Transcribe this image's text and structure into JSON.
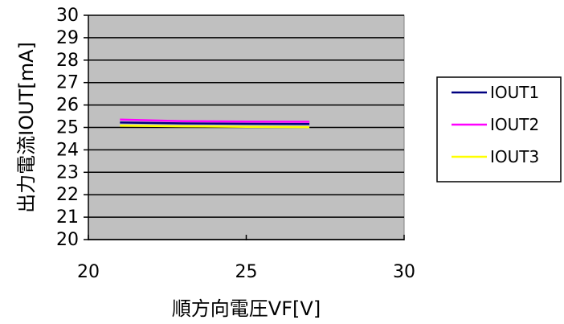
{
  "chart_data": {
    "type": "line",
    "xlabel": "順方向電圧VF[V]",
    "ylabel": "出力電流IOUT[mA]",
    "xlim": [
      20,
      30
    ],
    "ylim": [
      20,
      30
    ],
    "x_ticks": [
      "20",
      "25",
      "30"
    ],
    "y_ticks": [
      "20",
      "21",
      "22",
      "23",
      "24",
      "25",
      "26",
      "27",
      "28",
      "29",
      "30"
    ],
    "grid": "horizontal",
    "plot_background": "#c0c0c0",
    "legend_position": "right",
    "series": [
      {
        "name": "IOUT1",
        "color": "#000080",
        "x": [
          21,
          23,
          25,
          27
        ],
        "y": [
          25.22,
          25.18,
          25.16,
          25.15
        ]
      },
      {
        "name": "IOUT2",
        "color": "#ff00ff",
        "x": [
          21,
          23,
          25,
          27
        ],
        "y": [
          25.35,
          25.28,
          25.26,
          25.25
        ]
      },
      {
        "name": "IOUT3",
        "color": "#ffff00",
        "x": [
          21,
          23,
          25,
          27
        ],
        "y": [
          25.08,
          25.05,
          25.03,
          25.01
        ]
      }
    ]
  }
}
